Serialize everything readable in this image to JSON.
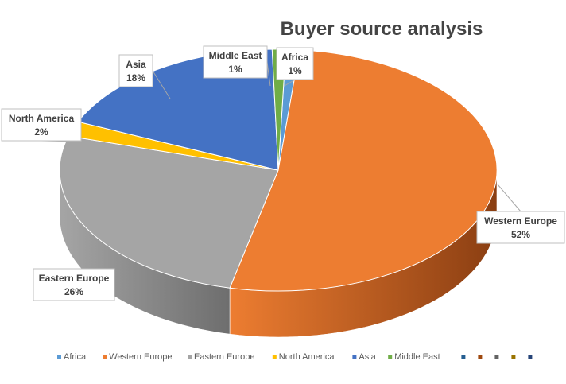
{
  "chart_data": {
    "type": "pie",
    "style": "3d",
    "title": "Buyer source analysis",
    "legend_position": "bottom",
    "slices": [
      {
        "name": "Africa",
        "value": 1,
        "label_pct": "1%",
        "color": "#5b9bd5",
        "dark": "#3c6e9c"
      },
      {
        "name": "Western Europe",
        "value": 52,
        "label_pct": "52%",
        "color": "#ed7d31",
        "dark": "#8a3e12"
      },
      {
        "name": "Eastern Europe",
        "value": 26,
        "label_pct": "26%",
        "color": "#a5a5a5",
        "dark": "#6e6e6e"
      },
      {
        "name": "North America",
        "value": 2,
        "label_pct": "2%",
        "color": "#ffc000",
        "dark": "#a07800"
      },
      {
        "name": "Asia",
        "value": 18,
        "label_pct": "18%",
        "color": "#4472c4",
        "dark": "#2b4a82"
      },
      {
        "name": "Middle East",
        "value": 1,
        "label_pct": "1%",
        "color": "#70ad47",
        "dark": "#46702c"
      }
    ],
    "legend_extra_markers": [
      "#255e91",
      "#9e480e",
      "#636363",
      "#997300",
      "#264478"
    ]
  }
}
